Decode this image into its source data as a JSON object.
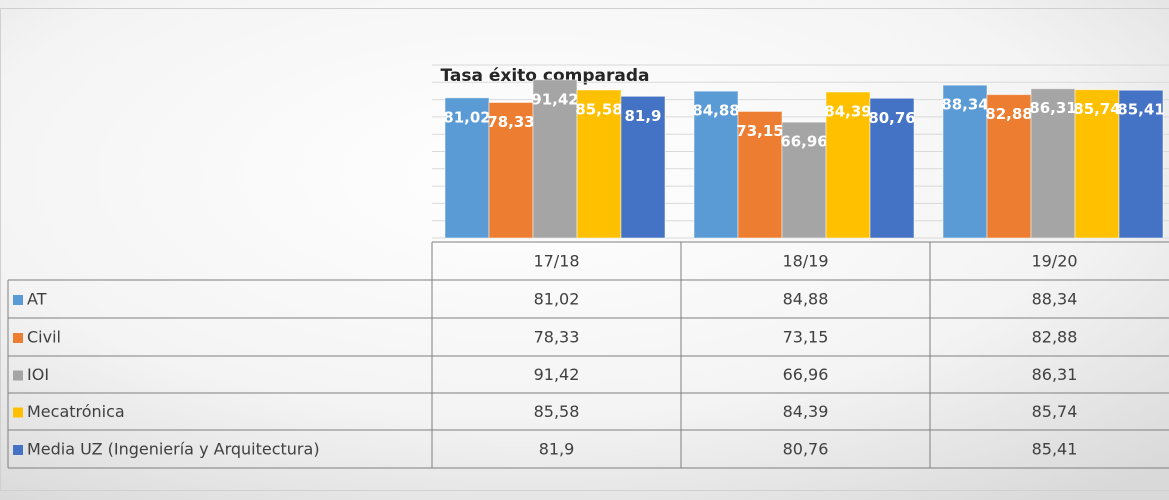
{
  "chart_data": {
    "type": "bar",
    "title": "Tasa éxito comparada",
    "categories": [
      "17/18",
      "18/19",
      "19/20"
    ],
    "series": [
      {
        "name": "AT",
        "color": "#5b9bd5",
        "values": [
          81.02,
          84.88,
          88.34
        ],
        "value_labels": [
          "81,02",
          "84,88",
          "88,34"
        ]
      },
      {
        "name": "Civil",
        "color": "#ed7d31",
        "values": [
          78.33,
          73.15,
          82.88
        ],
        "value_labels": [
          "78,33",
          "73,15",
          "82,88"
        ]
      },
      {
        "name": "IOI",
        "color": "#a5a5a5",
        "values": [
          91.42,
          66.96,
          86.31
        ],
        "value_labels": [
          "91,42",
          "66,96",
          "86,31"
        ]
      },
      {
        "name": "Mecatrónica",
        "color": "#ffc000",
        "values": [
          85.58,
          84.39,
          85.74
        ],
        "value_labels": [
          "85,58",
          "84,39",
          "85,74"
        ]
      },
      {
        "name": "Media UZ (Ingeniería y Arquitectura)",
        "color": "#4472c4",
        "values": [
          81.9,
          80.76,
          85.41
        ],
        "value_labels": [
          "81,9",
          "80,76",
          "85,41"
        ]
      }
    ],
    "ylim": [
      0,
      100
    ],
    "yticks": [
      0,
      10,
      20,
      30,
      40,
      50,
      60,
      70,
      80,
      90,
      100
    ],
    "grid": true
  }
}
